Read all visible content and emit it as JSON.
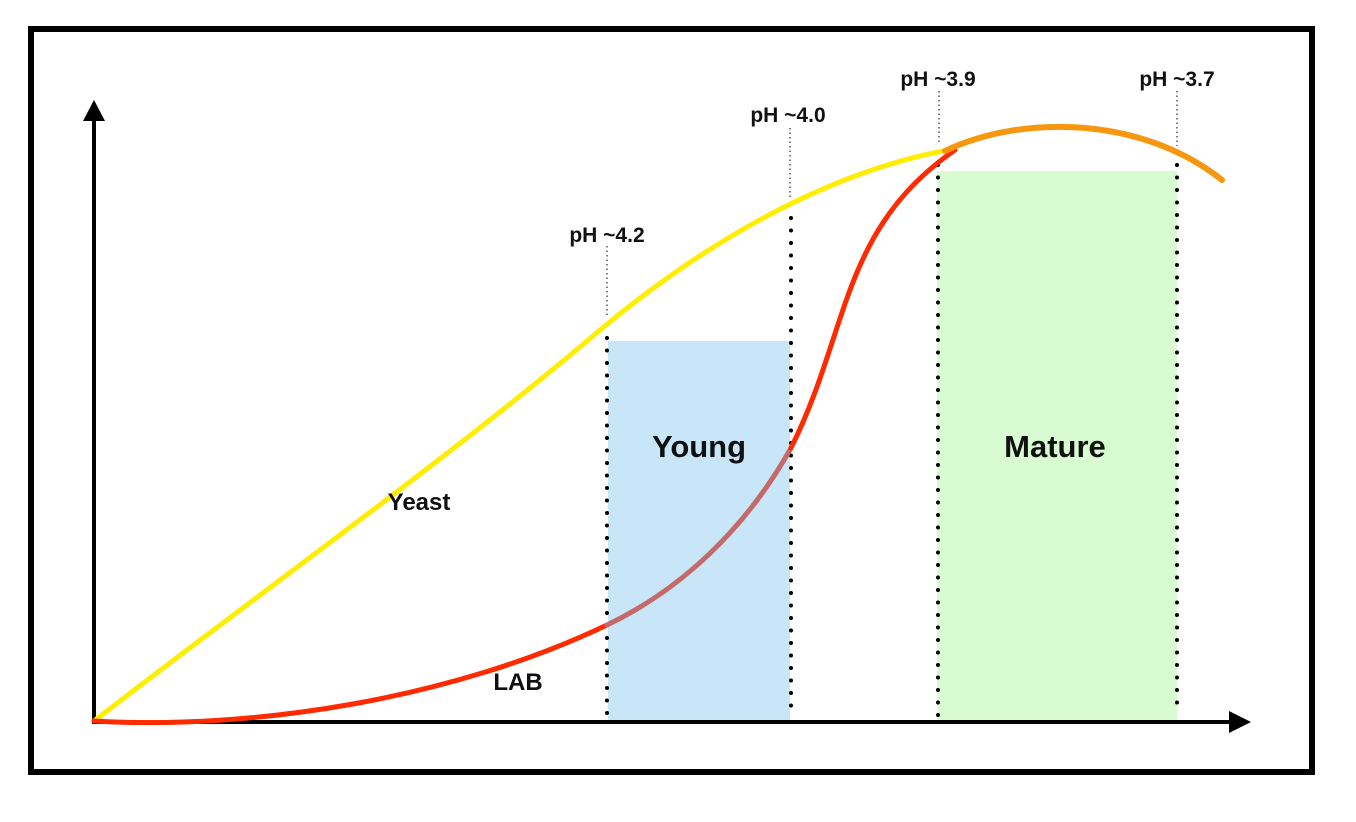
{
  "diagram": {
    "curve_labels": {
      "yeast": "Yeast",
      "lab": "LAB"
    },
    "zones": {
      "young": "Young",
      "mature": "Mature"
    },
    "ph_markers": [
      "pH ~4.2",
      "pH ~4.0",
      "pH ~3.9",
      "pH ~3.7"
    ],
    "colors": {
      "yeast_curve": "#ffee00",
      "lab_curve": "#ff2a00",
      "lab_curve_in_young": "#c46a6a",
      "late_curve": "#f7960f",
      "young_zone": "#c9e6f8",
      "mature_zone": "#d9fbd1",
      "frame": "#000000"
    }
  }
}
